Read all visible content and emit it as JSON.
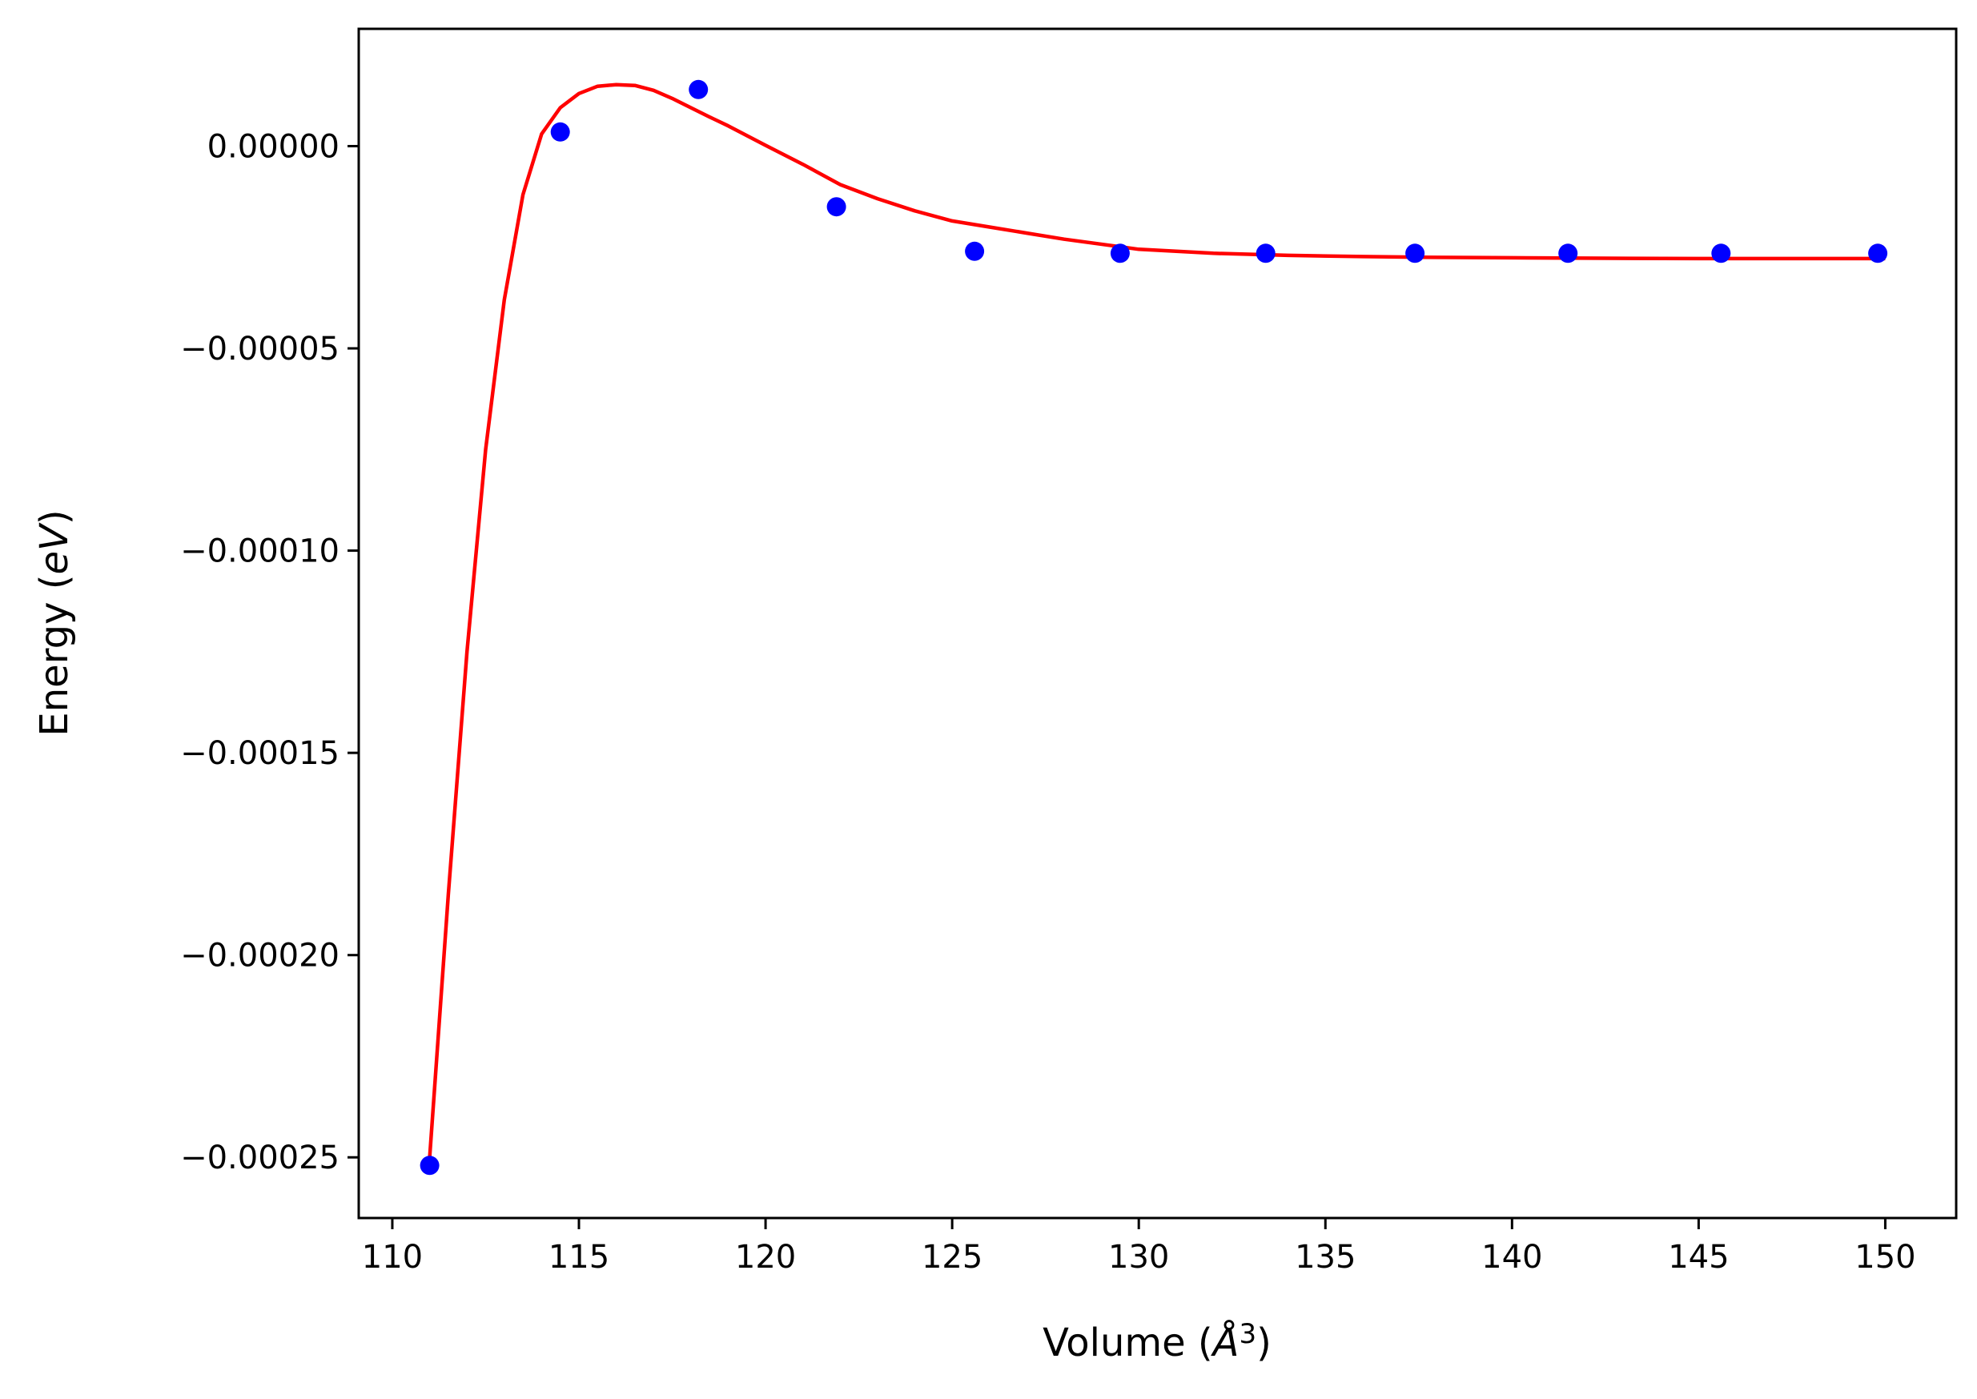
{
  "chart_data": {
    "type": "scatter",
    "title": "",
    "xlabel": {
      "prefix": "Volume (",
      "symbol": "Å",
      "sup": "3",
      "suffix": ")"
    },
    "ylabel": {
      "prefix": "Energy (",
      "symbol": "eV",
      "suffix": ")"
    },
    "xlim": [
      109.1,
      151.9
    ],
    "ylim": [
      -0.000265,
      2.9e-05
    ],
    "x_ticks": [
      110,
      115,
      120,
      125,
      130,
      135,
      140,
      145,
      150
    ],
    "x_tick_labels": [
      "110",
      "115",
      "120",
      "125",
      "130",
      "135",
      "140",
      "145",
      "150"
    ],
    "y_ticks": [
      0.0,
      -5e-05,
      -0.0001,
      -0.00015,
      -0.0002,
      -0.00025
    ],
    "y_tick_labels": [
      "0.00000",
      "−0.00005",
      "−0.00010",
      "−0.00015",
      "−0.00020",
      "−0.00025"
    ],
    "grid": false,
    "series": [
      {
        "kind": "points",
        "color": "#0000ff",
        "x": [
          111.0,
          114.5,
          118.2,
          121.9,
          125.6,
          129.5,
          133.4,
          137.4,
          141.5,
          145.6,
          149.8
        ],
        "y": [
          -0.000252,
          3.5e-06,
          1.4e-05,
          -1.5e-05,
          -2.6e-05,
          -2.65e-05,
          -2.65e-05,
          -2.65e-05,
          -2.65e-05,
          -2.65e-05,
          -2.65e-05
        ]
      },
      {
        "kind": "fit-line",
        "color": "#ff0000",
        "x": [
          111.0,
          111.5,
          112.0,
          112.5,
          113.0,
          113.5,
          114.0,
          114.5,
          115.0,
          115.5,
          116.0,
          116.5,
          117.0,
          117.5,
          118.0,
          118.5,
          119.0,
          120.0,
          121.0,
          122.0,
          123.0,
          124.0,
          125.0,
          126.0,
          127.0,
          128.0,
          130.0,
          132.0,
          134.0,
          136.0,
          138.0,
          140.0,
          142.0,
          145.0,
          148.0,
          150.0
        ],
        "y": [
          -0.00025,
          -0.000185,
          -0.000125,
          -7.5e-05,
          -3.8e-05,
          -1.2e-05,
          3e-06,
          9.5e-06,
          1.3e-05,
          1.48e-05,
          1.52e-05,
          1.5e-05,
          1.38e-05,
          1.18e-05,
          9.5e-06,
          7.2e-06,
          5e-06,
          2e-07,
          -4.5e-06,
          -9.5e-06,
          -1.3e-05,
          -1.6e-05,
          -1.85e-05,
          -2e-05,
          -2.15e-05,
          -2.3e-05,
          -2.55e-05,
          -2.65e-05,
          -2.7e-05,
          -2.73e-05,
          -2.75e-05,
          -2.76e-05,
          -2.77e-05,
          -2.78e-05,
          -2.78e-05,
          -2.78e-05
        ]
      }
    ]
  }
}
